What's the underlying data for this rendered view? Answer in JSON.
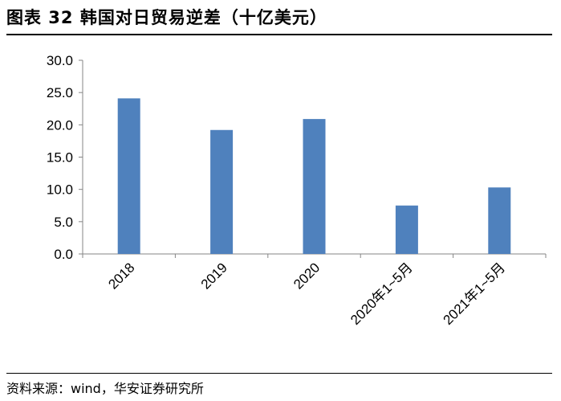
{
  "title": "图表 32 韩国对日贸易逆差（十亿美元）",
  "source": "资料来源：wind，华安证券研究所",
  "colors": {
    "bar": "#4F81BD",
    "axis": "#868686"
  },
  "chart_data": {
    "type": "bar",
    "categories": [
      "2018",
      "2019",
      "2020",
      "2020年1~5月",
      "2021年1~5月"
    ],
    "values": [
      24.1,
      19.2,
      20.9,
      7.5,
      10.3
    ],
    "ylim": [
      0,
      30
    ],
    "yticks": [
      "0.0",
      "5.0",
      "10.0",
      "15.0",
      "20.0",
      "25.0",
      "30.0"
    ],
    "grid": false,
    "legend": "none"
  }
}
